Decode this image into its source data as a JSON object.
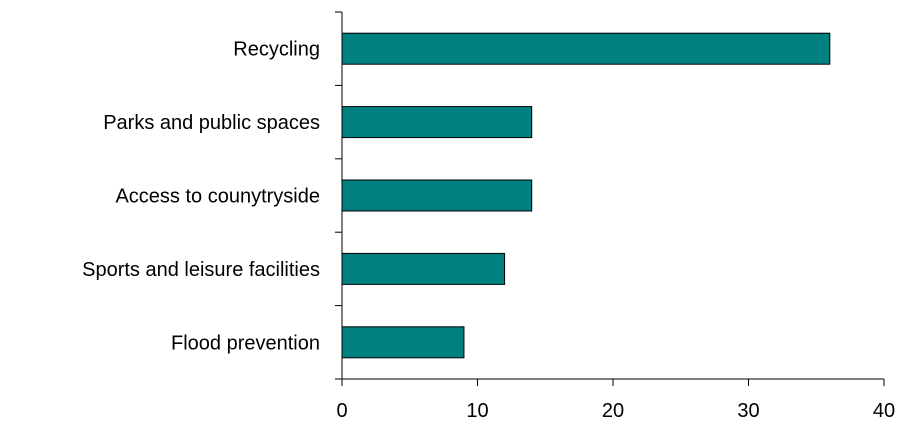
{
  "colors": {
    "bar": "#008080"
  },
  "chart_data": {
    "type": "bar",
    "orientation": "horizontal",
    "categories": [
      "Recycling",
      "Parks and public spaces",
      "Access to counytryside",
      "Sports and leisure facilities",
      "Flood prevention"
    ],
    "values": [
      36,
      14,
      14,
      12,
      9
    ],
    "x_ticks": [
      "0",
      "10",
      "20",
      "30",
      "40"
    ],
    "xlim": [
      0,
      40
    ],
    "title": "",
    "xlabel": "",
    "ylabel": "",
    "grid": false,
    "legend": "none"
  }
}
